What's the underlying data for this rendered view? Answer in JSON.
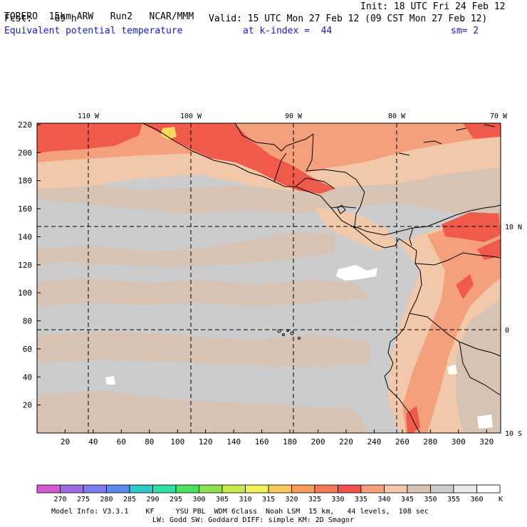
{
  "header": {
    "model": "TORERO",
    "resolution": "15km ARW",
    "run": "Run2",
    "org": "NCAR/MMM",
    "init": "Init: 18 UTC Fri 24 Feb 12",
    "fcst_label": "Fcst:",
    "fcst_value": "69 h",
    "valid": "Valid: 15 UTC Mon 27 Feb 12 (09 CST Mon 27 Feb 12)",
    "field": "Equivalent potential temperature",
    "kindex": "at k-index =  44",
    "smooth": "sm= 2"
  },
  "map": {
    "x_ticks": [
      "20",
      "40",
      "60",
      "80",
      "100",
      "120",
      "140",
      "160",
      "180",
      "200",
      "220",
      "240",
      "260",
      "280",
      "300",
      "320"
    ],
    "y_ticks": [
      "20",
      "40",
      "60",
      "80",
      "100",
      "120",
      "140",
      "160",
      "180",
      "200",
      "220"
    ],
    "lon_labels": [
      "110 W",
      "100 W",
      "90 W",
      "80 W",
      "70 W"
    ],
    "lat_labels": [
      "10 N",
      "0",
      "10 S"
    ],
    "colors": {
      "gray": "#cccccc",
      "tan": "#d7c3b4",
      "peach": "#f2c8aa",
      "salmon": "#f5a07c",
      "red": "#f05a4a",
      "yellow": "#f8d860",
      "white": "#ffffff"
    }
  },
  "colorbar": {
    "labels": [
      "270",
      "275",
      "280",
      "285",
      "290",
      "295",
      "300",
      "305",
      "310",
      "315",
      "320",
      "325",
      "330",
      "335",
      "340",
      "345",
      "350",
      "355",
      "360"
    ],
    "unit": "K",
    "colors": [
      "#d25ad2",
      "#9a6ee0",
      "#7c7cf0",
      "#5a8cf0",
      "#30c8c8",
      "#30e0a0",
      "#4ae060",
      "#8ce050",
      "#c8e850",
      "#f0f05a",
      "#f8c85a",
      "#f59c5a",
      "#f5785a",
      "#f05050",
      "#f5a07c",
      "#f2c8aa",
      "#d7c3b4",
      "#cccccc",
      "#eaeaea",
      "#ffffff"
    ]
  },
  "footer": {
    "line1": "Model Info: V3.3.1    KF     YSU PBL  WDM 6class  Noah LSM  15 km,   44 levels,  108 sec",
    "line2": "LW: Godd SW: Goddard DIFF: simple KM: 2D Smagor"
  }
}
